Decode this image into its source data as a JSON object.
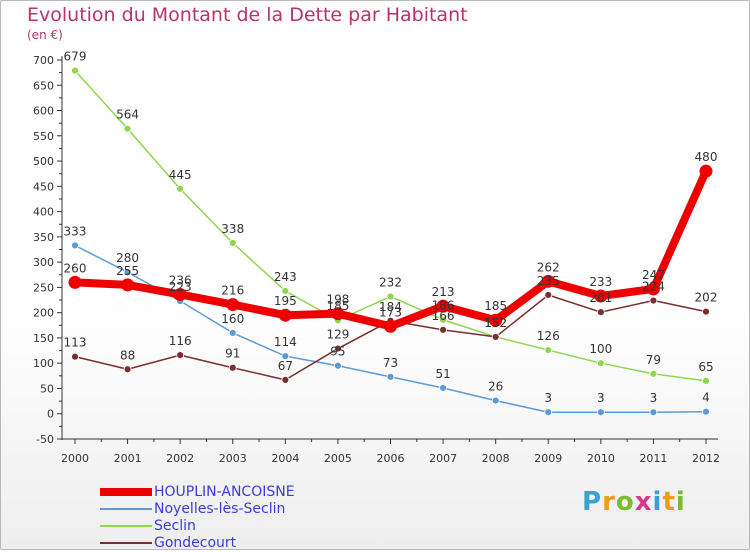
{
  "chart_data": {
    "type": "line",
    "title": "Evolution du Montant de la Dette par Habitant",
    "subtitle": "(en €)",
    "xlabel": "",
    "ylabel": "",
    "x": [
      "2000",
      "2001",
      "2002",
      "2003",
      "2004",
      "2005",
      "2006",
      "2007",
      "2008",
      "2009",
      "2010",
      "2011",
      "2012"
    ],
    "ylim": [
      -50,
      700
    ],
    "yticks": [
      "-50",
      "0",
      "50",
      "100",
      "150",
      "200",
      "250",
      "300",
      "350",
      "400",
      "450",
      "500",
      "550",
      "600",
      "650",
      "700"
    ],
    "grid": false,
    "legend_position": "bottom-left",
    "series": [
      {
        "name": "HOUPLIN-ANCOISNE",
        "color": "#ee0000",
        "values": [
          260,
          255,
          236,
          216,
          195,
          198,
          173,
          213,
          185,
          262,
          233,
          247,
          480
        ],
        "labels": [
          "260",
          "255",
          "236",
          "216",
          "195",
          "198",
          "173",
          "213",
          "185",
          "262",
          "233",
          "247",
          "480"
        ]
      },
      {
        "name": "Noyelles-lès-Seclin",
        "color": "#5b9bd5",
        "values": [
          333,
          280,
          223,
          160,
          114,
          95,
          73,
          51,
          26,
          3,
          3,
          3,
          4
        ],
        "labels": [
          "333",
          "280",
          "223",
          "160",
          "114",
          "95",
          "73",
          "51",
          "26",
          "3",
          "3",
          "3",
          "4"
        ]
      },
      {
        "name": "Seclin",
        "color": "#8ed64a",
        "values": [
          679,
          564,
          445,
          338,
          243,
          185,
          232,
          186,
          152,
          126,
          100,
          79,
          65
        ],
        "labels": [
          "679",
          "564",
          "445",
          "338",
          "243",
          "185",
          "232",
          "186",
          "152",
          "126",
          "100",
          "79",
          "65"
        ]
      },
      {
        "name": "Gondecourt",
        "color": "#7a2e2e",
        "values": [
          113,
          88,
          116,
          91,
          67,
          129,
          184,
          166,
          152,
          235,
          201,
          224,
          202
        ],
        "labels": [
          "113",
          "88",
          "116",
          "91",
          "67",
          "129",
          "184",
          "166",
          "152",
          "235",
          "201",
          "224",
          "202"
        ]
      }
    ]
  },
  "logo": {
    "letters": [
      "P",
      "r",
      "o",
      "x",
      "i",
      "t",
      "i"
    ],
    "colors": [
      "#3aa0d8",
      "#f29a1a",
      "#7cbc2a",
      "#d83a8a",
      "#3aa0d8",
      "#f29a1a",
      "#7cbc2a"
    ]
  }
}
